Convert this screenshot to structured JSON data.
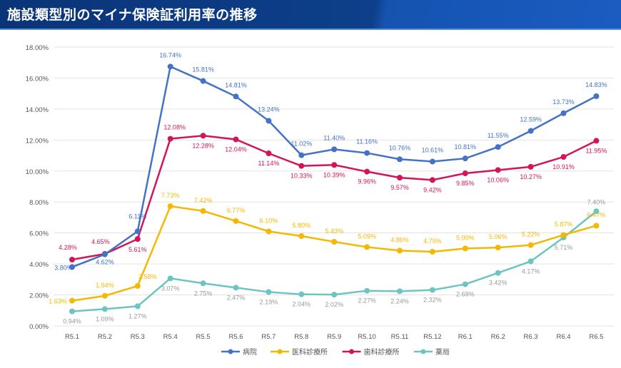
{
  "header": {
    "title": "施設類型別のマイナ保険証利用率の推移"
  },
  "chart_data": {
    "type": "line",
    "title": "",
    "xlabel": "",
    "ylabel": "",
    "categories": [
      "R5.1",
      "R5.2",
      "R5.3",
      "R5.4",
      "R5.5",
      "R5.6",
      "R5.7",
      "R5.8",
      "R5.9",
      "R5.10",
      "R5.11",
      "R5.12",
      "R6.1",
      "R6.2",
      "R6.3",
      "R6.4",
      "R6.5"
    ],
    "ylim": [
      0,
      18
    ],
    "yticks": [
      "0.00%",
      "2.00%",
      "4.00%",
      "6.00%",
      "8.00%",
      "10.00%",
      "12.00%",
      "14.00%",
      "16.00%",
      "18.00%"
    ],
    "grid": true,
    "legend_position": "bottom",
    "series": [
      {
        "name": "病院",
        "color": "#4472c4",
        "values": [
          3.8,
          4.62,
          6.11,
          16.74,
          15.81,
          14.81,
          13.24,
          11.02,
          11.4,
          11.16,
          10.76,
          10.61,
          10.81,
          11.55,
          12.59,
          13.73,
          14.83
        ]
      },
      {
        "name": "医科診療所",
        "color": "#f5b800",
        "values": [
          1.63,
          1.94,
          2.58,
          7.73,
          7.42,
          6.77,
          6.1,
          5.8,
          5.43,
          5.09,
          4.86,
          4.79,
          5.0,
          5.06,
          5.22,
          5.87,
          6.47
        ]
      },
      {
        "name": "歯科診療所",
        "color": "#d4145a",
        "values": [
          4.28,
          4.65,
          5.61,
          12.08,
          12.28,
          12.04,
          11.14,
          10.33,
          10.39,
          9.96,
          9.57,
          9.42,
          9.85,
          10.06,
          10.27,
          10.91,
          11.95
        ]
      },
      {
        "name": "薬局",
        "color": "#6cc5c0",
        "values": [
          0.94,
          1.09,
          1.27,
          3.07,
          2.75,
          2.47,
          2.19,
          2.04,
          2.02,
          2.27,
          2.24,
          2.32,
          2.69,
          3.42,
          4.17,
          5.71,
          7.4
        ]
      }
    ]
  }
}
